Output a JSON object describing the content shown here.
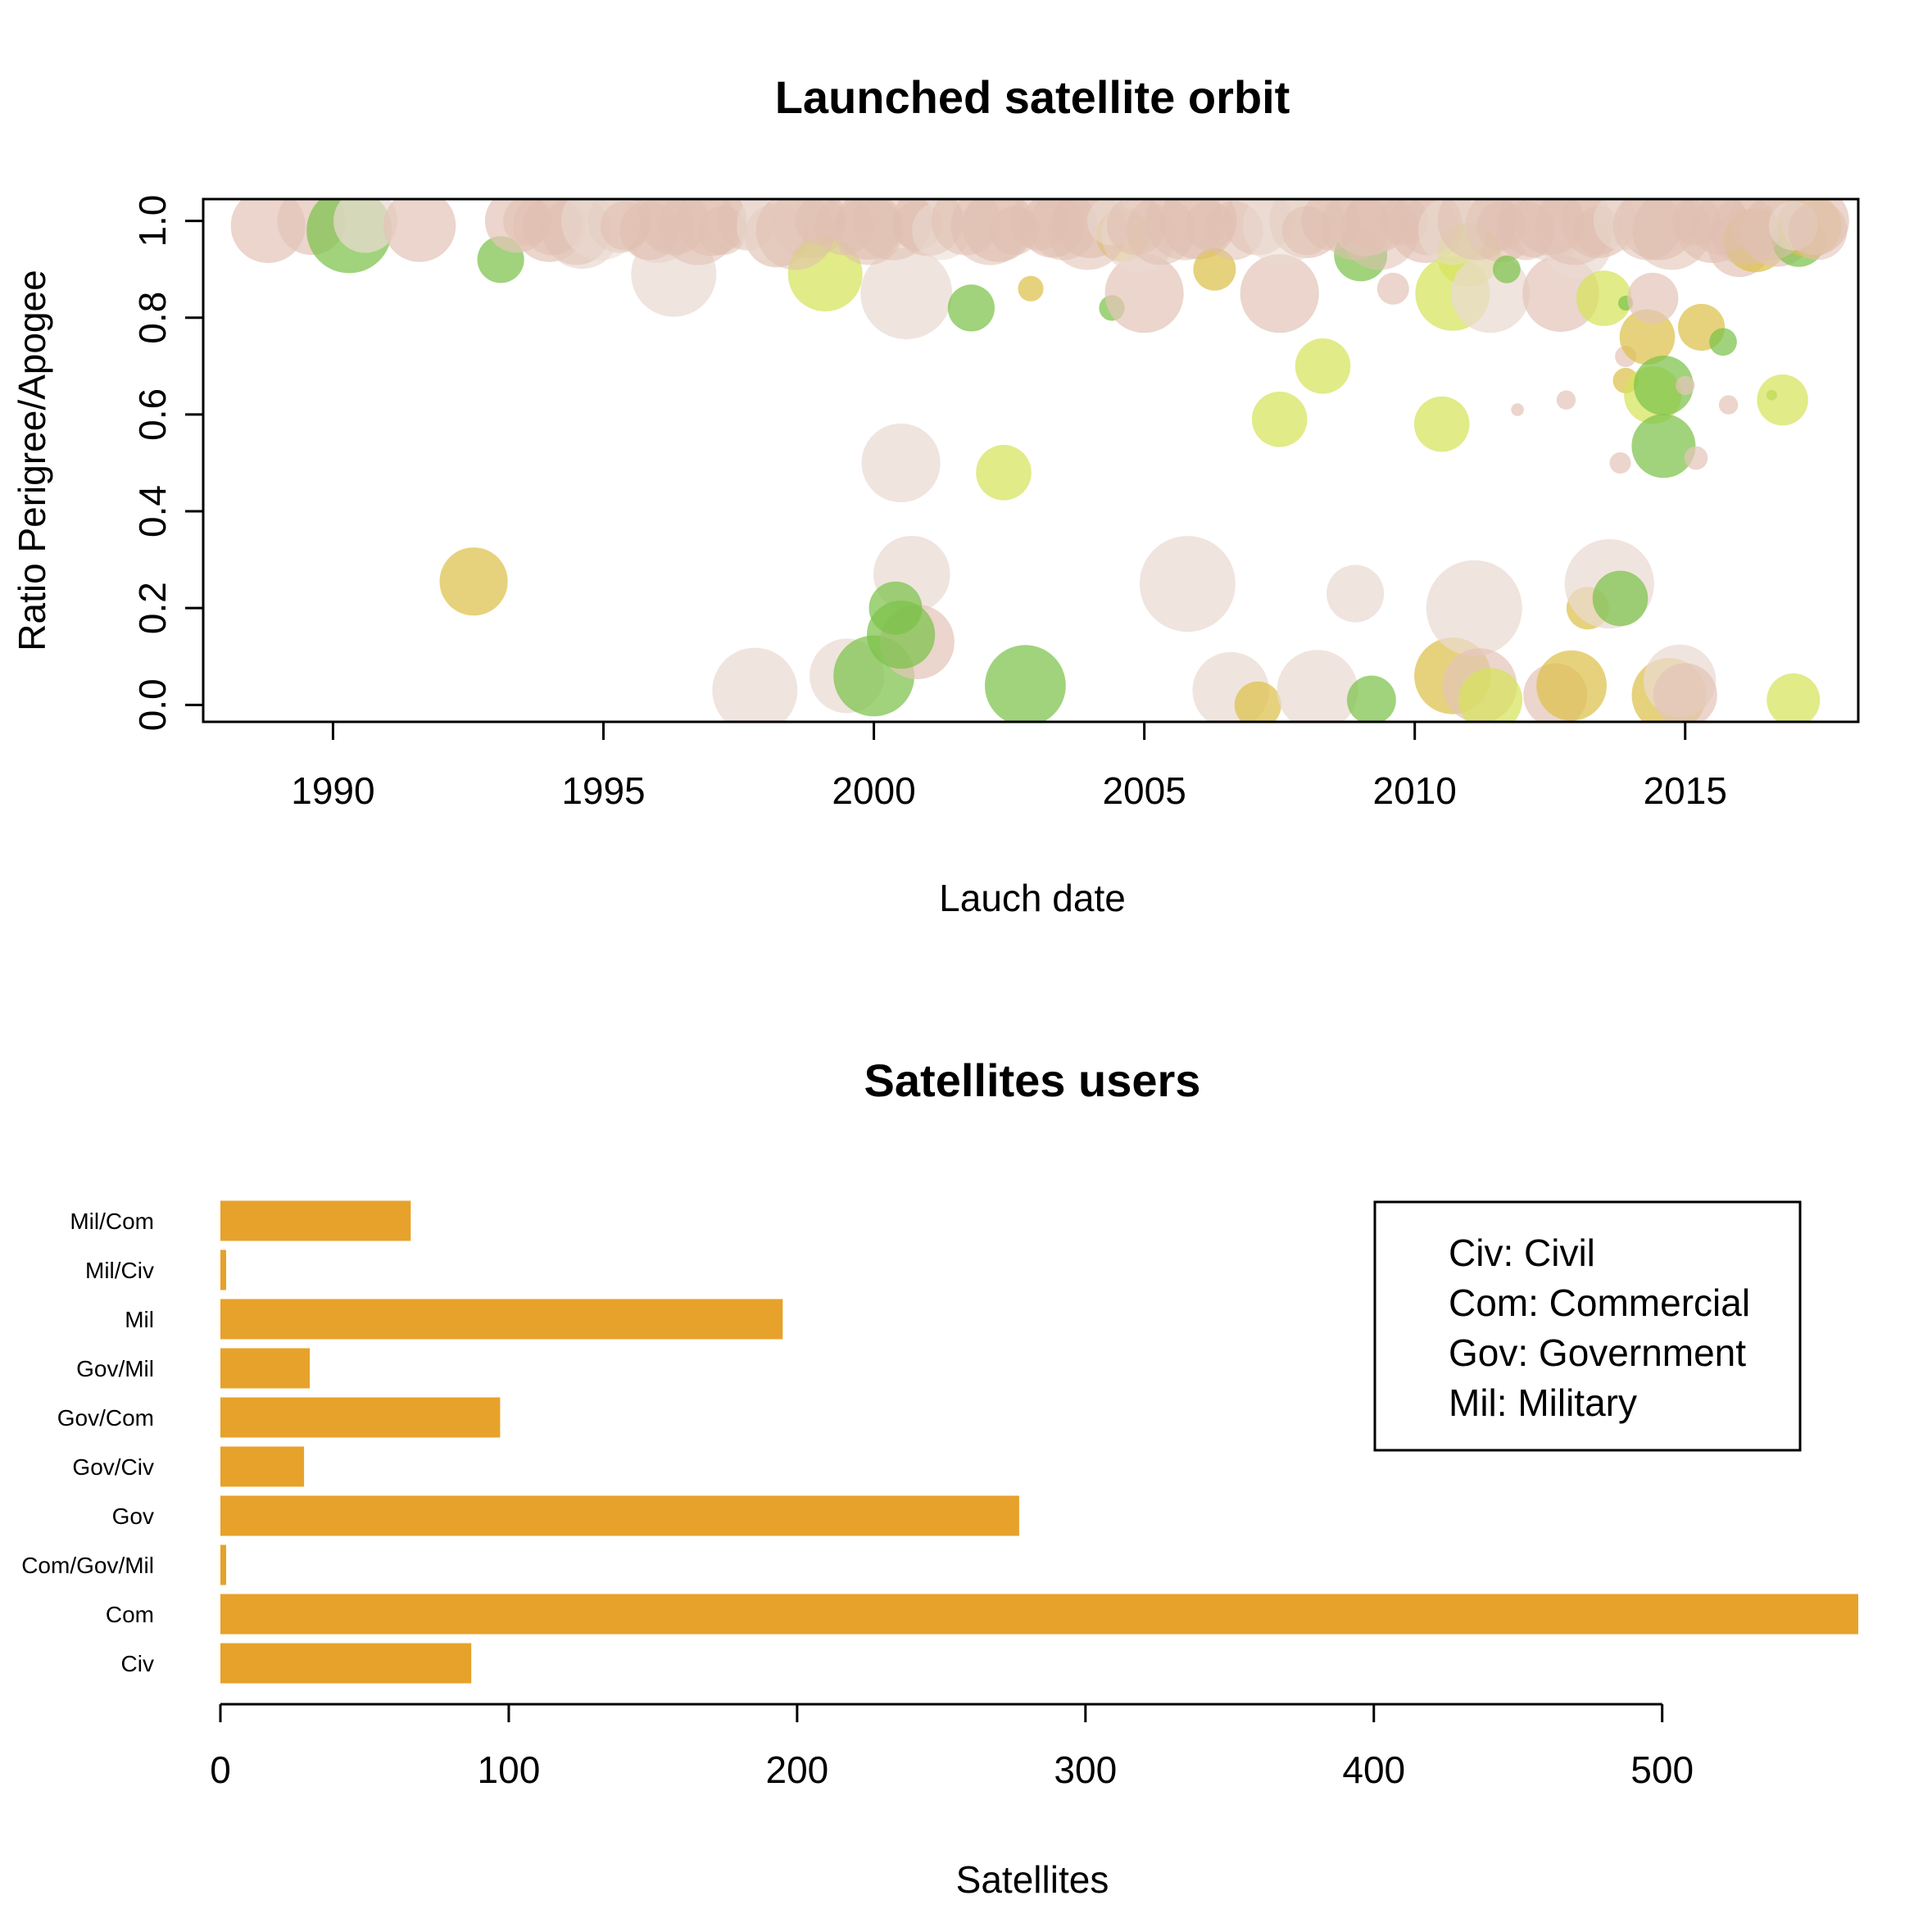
{
  "chart_data": [
    {
      "type": "scatter",
      "title": "Launched satellite orbit",
      "xlabel": "Lauch date",
      "ylabel": "Ratio Perigree/Apogee",
      "xlim": [
        1987.6,
        2018.2
      ],
      "ylim": [
        -0.035,
        1.045
      ],
      "x_ticks": [
        1990,
        1995,
        2000,
        2005,
        2010,
        2015
      ],
      "y_ticks": [
        "0.0",
        "0.2",
        "0.4",
        "0.6",
        "0.8",
        "1.0"
      ],
      "y_tick_values": [
        0,
        0.2,
        0.4,
        0.6,
        0.8,
        1.0
      ],
      "colors": {
        "pink": "#e3c5b8",
        "green": "#7cc24a",
        "yellow": "#d6e35a",
        "gold": "#dcc04a",
        "light": "#eadad2"
      },
      "points": [
        {
          "x": 1988.8,
          "y": 0.99,
          "r": 3.5,
          "c": "pink"
        },
        {
          "x": 1989.6,
          "y": 1.0,
          "r": 3.2,
          "c": "pink"
        },
        {
          "x": 1990.3,
          "y": 0.98,
          "r": 4.0,
          "c": "green"
        },
        {
          "x": 1990.6,
          "y": 1.0,
          "r": 3.0,
          "c": "light"
        },
        {
          "x": 1991.6,
          "y": 0.99,
          "r": 3.4,
          "c": "pink"
        },
        {
          "x": 1992.6,
          "y": 0.255,
          "r": 3.2,
          "c": "gold"
        },
        {
          "x": 1993.1,
          "y": 0.92,
          "r": 2.2,
          "c": "green"
        },
        {
          "x": 1993.4,
          "y": 1.0,
          "r": 3.0,
          "c": "pink"
        },
        {
          "x": 1994.0,
          "y": 0.99,
          "r": 3.4,
          "c": "pink"
        },
        {
          "x": 1994.6,
          "y": 0.98,
          "r": 3.6,
          "c": "light"
        },
        {
          "x": 1995.3,
          "y": 1.0,
          "r": 3.0,
          "c": "pink"
        },
        {
          "x": 1996.0,
          "y": 0.99,
          "r": 3.5,
          "c": "pink"
        },
        {
          "x": 1996.3,
          "y": 0.89,
          "r": 4.0,
          "c": "light"
        },
        {
          "x": 1997.0,
          "y": 1.0,
          "r": 3.3,
          "c": "pink"
        },
        {
          "x": 1997.8,
          "y": 0.03,
          "r": 4.0,
          "c": "light"
        },
        {
          "x": 1998.2,
          "y": 0.97,
          "r": 3.0,
          "c": "pink"
        },
        {
          "x": 1998.8,
          "y": 1.0,
          "r": 3.5,
          "c": "pink"
        },
        {
          "x": 1999.1,
          "y": 0.89,
          "r": 3.5,
          "c": "yellow"
        },
        {
          "x": 1999.5,
          "y": 0.06,
          "r": 3.5,
          "c": "light"
        },
        {
          "x": 1999.9,
          "y": 0.99,
          "r": 3.2,
          "c": "pink"
        },
        {
          "x": 2000.0,
          "y": 0.06,
          "r": 3.8,
          "c": "green"
        },
        {
          "x": 2000.5,
          "y": 0.5,
          "r": 3.7,
          "c": "light"
        },
        {
          "x": 2000.6,
          "y": 0.85,
          "r": 4.3,
          "c": "light"
        },
        {
          "x": 2000.7,
          "y": 0.27,
          "r": 3.6,
          "c": "light"
        },
        {
          "x": 2000.8,
          "y": 0.13,
          "r": 3.5,
          "c": "pink"
        },
        {
          "x": 2000.4,
          "y": 0.2,
          "r": 2.5,
          "c": "green"
        },
        {
          "x": 2000.5,
          "y": 0.145,
          "r": 3.2,
          "c": "green"
        },
        {
          "x": 2001.0,
          "y": 1.0,
          "r": 3.3,
          "c": "pink"
        },
        {
          "x": 2001.8,
          "y": 0.82,
          "r": 2.2,
          "c": "green"
        },
        {
          "x": 2002.3,
          "y": 0.99,
          "r": 3.4,
          "c": "pink"
        },
        {
          "x": 2002.4,
          "y": 0.48,
          "r": 2.6,
          "c": "yellow"
        },
        {
          "x": 2002.8,
          "y": 0.04,
          "r": 3.8,
          "c": "green"
        },
        {
          "x": 2002.9,
          "y": 0.86,
          "r": 1.2,
          "c": "gold"
        },
        {
          "x": 2003.3,
          "y": 0.99,
          "r": 3.0,
          "c": "pink"
        },
        {
          "x": 2004.0,
          "y": 1.0,
          "r": 3.5,
          "c": "pink"
        },
        {
          "x": 2004.4,
          "y": 0.82,
          "r": 1.2,
          "c": "green"
        },
        {
          "x": 2004.6,
          "y": 0.97,
          "r": 2.5,
          "c": "gold"
        },
        {
          "x": 2005.0,
          "y": 0.85,
          "r": 3.7,
          "c": "pink"
        },
        {
          "x": 2004.9,
          "y": 0.97,
          "r": 3.5,
          "c": "light"
        },
        {
          "x": 2005.8,
          "y": 0.25,
          "r": 4.5,
          "c": "light"
        },
        {
          "x": 2006.0,
          "y": 1.0,
          "r": 3.6,
          "c": "pink"
        },
        {
          "x": 2006.3,
          "y": 0.9,
          "r": 2.0,
          "c": "gold"
        },
        {
          "x": 2006.6,
          "y": 0.03,
          "r": 3.6,
          "c": "light"
        },
        {
          "x": 2007.1,
          "y": 0.0,
          "r": 2.2,
          "c": "gold"
        },
        {
          "x": 2007.5,
          "y": 0.85,
          "r": 3.7,
          "c": "pink"
        },
        {
          "x": 2007.5,
          "y": 0.59,
          "r": 2.6,
          "c": "yellow"
        },
        {
          "x": 2008.0,
          "y": 1.0,
          "r": 3.5,
          "c": "pink"
        },
        {
          "x": 2008.2,
          "y": 0.03,
          "r": 3.8,
          "c": "light"
        },
        {
          "x": 2008.3,
          "y": 0.7,
          "r": 2.6,
          "c": "yellow"
        },
        {
          "x": 2008.9,
          "y": 0.23,
          "r": 2.7,
          "c": "light"
        },
        {
          "x": 2009.0,
          "y": 0.93,
          "r": 2.5,
          "c": "green"
        },
        {
          "x": 2009.1,
          "y": 1.0,
          "r": 3.3,
          "c": "light"
        },
        {
          "x": 2009.2,
          "y": 0.01,
          "r": 2.3,
          "c": "green"
        },
        {
          "x": 2009.3,
          "y": 1.0,
          "r": 3.0,
          "c": "pink"
        },
        {
          "x": 2009.6,
          "y": 0.86,
          "r": 1.5,
          "c": "pink"
        },
        {
          "x": 2010.2,
          "y": 0.99,
          "r": 3.5,
          "c": "pink"
        },
        {
          "x": 2010.5,
          "y": 0.58,
          "r": 2.6,
          "c": "yellow"
        },
        {
          "x": 2010.7,
          "y": 0.85,
          "r": 3.5,
          "c": "yellow"
        },
        {
          "x": 2010.7,
          "y": 0.06,
          "r": 3.6,
          "c": "gold"
        },
        {
          "x": 2011.0,
          "y": 0.93,
          "r": 3.0,
          "c": "yellow"
        },
        {
          "x": 2011.1,
          "y": 0.2,
          "r": 4.5,
          "c": "light"
        },
        {
          "x": 2011.2,
          "y": 0.04,
          "r": 3.5,
          "c": "pink"
        },
        {
          "x": 2011.4,
          "y": 0.01,
          "r": 3.0,
          "c": "yellow"
        },
        {
          "x": 2011.4,
          "y": 0.85,
          "r": 3.7,
          "c": "light"
        },
        {
          "x": 2011.6,
          "y": 0.99,
          "r": 3.4,
          "c": "pink"
        },
        {
          "x": 2011.7,
          "y": 0.9,
          "r": 1.3,
          "c": "green"
        },
        {
          "x": 2011.9,
          "y": 0.61,
          "r": 0.6,
          "c": "pink"
        },
        {
          "x": 2012.2,
          "y": 1.0,
          "r": 3.4,
          "c": "pink"
        },
        {
          "x": 2012.5,
          "y": 0.99,
          "r": 3.3,
          "c": "light"
        },
        {
          "x": 2012.6,
          "y": 0.02,
          "r": 3.0,
          "c": "pink"
        },
        {
          "x": 2012.7,
          "y": 0.85,
          "r": 3.6,
          "c": "pink"
        },
        {
          "x": 2012.8,
          "y": 0.63,
          "r": 0.9,
          "c": "pink"
        },
        {
          "x": 2012.9,
          "y": 0.04,
          "r": 3.3,
          "c": "gold"
        },
        {
          "x": 2013.0,
          "y": 0.95,
          "r": 3.2,
          "c": "light"
        },
        {
          "x": 2013.2,
          "y": 0.2,
          "r": 2.0,
          "c": "gold"
        },
        {
          "x": 2013.4,
          "y": 1.0,
          "r": 3.5,
          "c": "pink"
        },
        {
          "x": 2013.5,
          "y": 0.84,
          "r": 2.6,
          "c": "yellow"
        },
        {
          "x": 2013.6,
          "y": 0.25,
          "r": 4.2,
          "c": "light"
        },
        {
          "x": 2013.8,
          "y": 0.22,
          "r": 2.6,
          "c": "green"
        },
        {
          "x": 2013.8,
          "y": 0.5,
          "r": 1.0,
          "c": "pink"
        },
        {
          "x": 2013.9,
          "y": 0.67,
          "r": 1.2,
          "c": "gold"
        },
        {
          "x": 2013.9,
          "y": 0.72,
          "r": 1.0,
          "c": "pink"
        },
        {
          "x": 2013.9,
          "y": 0.83,
          "r": 0.7,
          "c": "green"
        },
        {
          "x": 2014.3,
          "y": 0.76,
          "r": 2.6,
          "c": "gold"
        },
        {
          "x": 2014.4,
          "y": 0.84,
          "r": 2.4,
          "c": "pink"
        },
        {
          "x": 2014.4,
          "y": 0.64,
          "r": 2.7,
          "c": "yellow"
        },
        {
          "x": 2014.5,
          "y": 1.0,
          "r": 3.7,
          "c": "pink"
        },
        {
          "x": 2014.6,
          "y": 0.66,
          "r": 2.8,
          "c": "green"
        },
        {
          "x": 2014.6,
          "y": 0.535,
          "r": 3.0,
          "c": "green"
        },
        {
          "x": 2014.7,
          "y": 0.02,
          "r": 3.5,
          "c": "gold"
        },
        {
          "x": 2014.9,
          "y": 0.05,
          "r": 3.4,
          "c": "light"
        },
        {
          "x": 2015.0,
          "y": 0.66,
          "r": 0.9,
          "c": "pink"
        },
        {
          "x": 2015.0,
          "y": 0.02,
          "r": 3.0,
          "c": "pink"
        },
        {
          "x": 2015.2,
          "y": 0.51,
          "r": 1.1,
          "c": "pink"
        },
        {
          "x": 2015.3,
          "y": 0.78,
          "r": 2.2,
          "c": "gold"
        },
        {
          "x": 2015.5,
          "y": 0.99,
          "r": 3.5,
          "c": "pink"
        },
        {
          "x": 2015.7,
          "y": 0.75,
          "r": 1.3,
          "c": "green"
        },
        {
          "x": 2015.8,
          "y": 0.62,
          "r": 0.9,
          "c": "pink"
        },
        {
          "x": 2016.0,
          "y": 0.95,
          "r": 3.0,
          "c": "pink"
        },
        {
          "x": 2016.3,
          "y": 0.96,
          "r": 3.0,
          "c": "gold"
        },
        {
          "x": 2016.6,
          "y": 0.64,
          "r": 0.5,
          "c": "green"
        },
        {
          "x": 2016.7,
          "y": 0.98,
          "r": 3.4,
          "c": "pink"
        },
        {
          "x": 2016.8,
          "y": 0.63,
          "r": 2.4,
          "c": "yellow"
        },
        {
          "x": 2017.0,
          "y": 0.01,
          "r": 2.5,
          "c": "yellow"
        },
        {
          "x": 2017.1,
          "y": 0.96,
          "r": 2.5,
          "c": "green"
        },
        {
          "x": 2017.3,
          "y": 0.99,
          "r": 3.0,
          "c": "gold"
        },
        {
          "x": 2017.4,
          "y": 1.0,
          "r": 3.2,
          "c": "pink"
        }
      ]
    },
    {
      "type": "bar",
      "orientation": "horizontal",
      "title": "Satellites users",
      "xlabel": "Satellites",
      "xlim": [
        0,
        568
      ],
      "x_ticks": [
        0,
        100,
        200,
        300,
        400,
        500
      ],
      "bar_color": "#e6a22a",
      "categories": [
        "Civ",
        "Com",
        "Com/Gov/Mil",
        "Gov",
        "Gov/Civ",
        "Gov/Com",
        "Gov/Mil",
        "Mil",
        "Mil/Civ",
        "Mil/Com"
      ],
      "values": [
        87,
        568,
        2,
        277,
        29,
        97,
        31,
        195,
        2,
        66
      ],
      "legend": [
        "Civ: Civil",
        "Com: Commercial",
        "Gov: Government",
        "Mil: Military"
      ]
    }
  ]
}
